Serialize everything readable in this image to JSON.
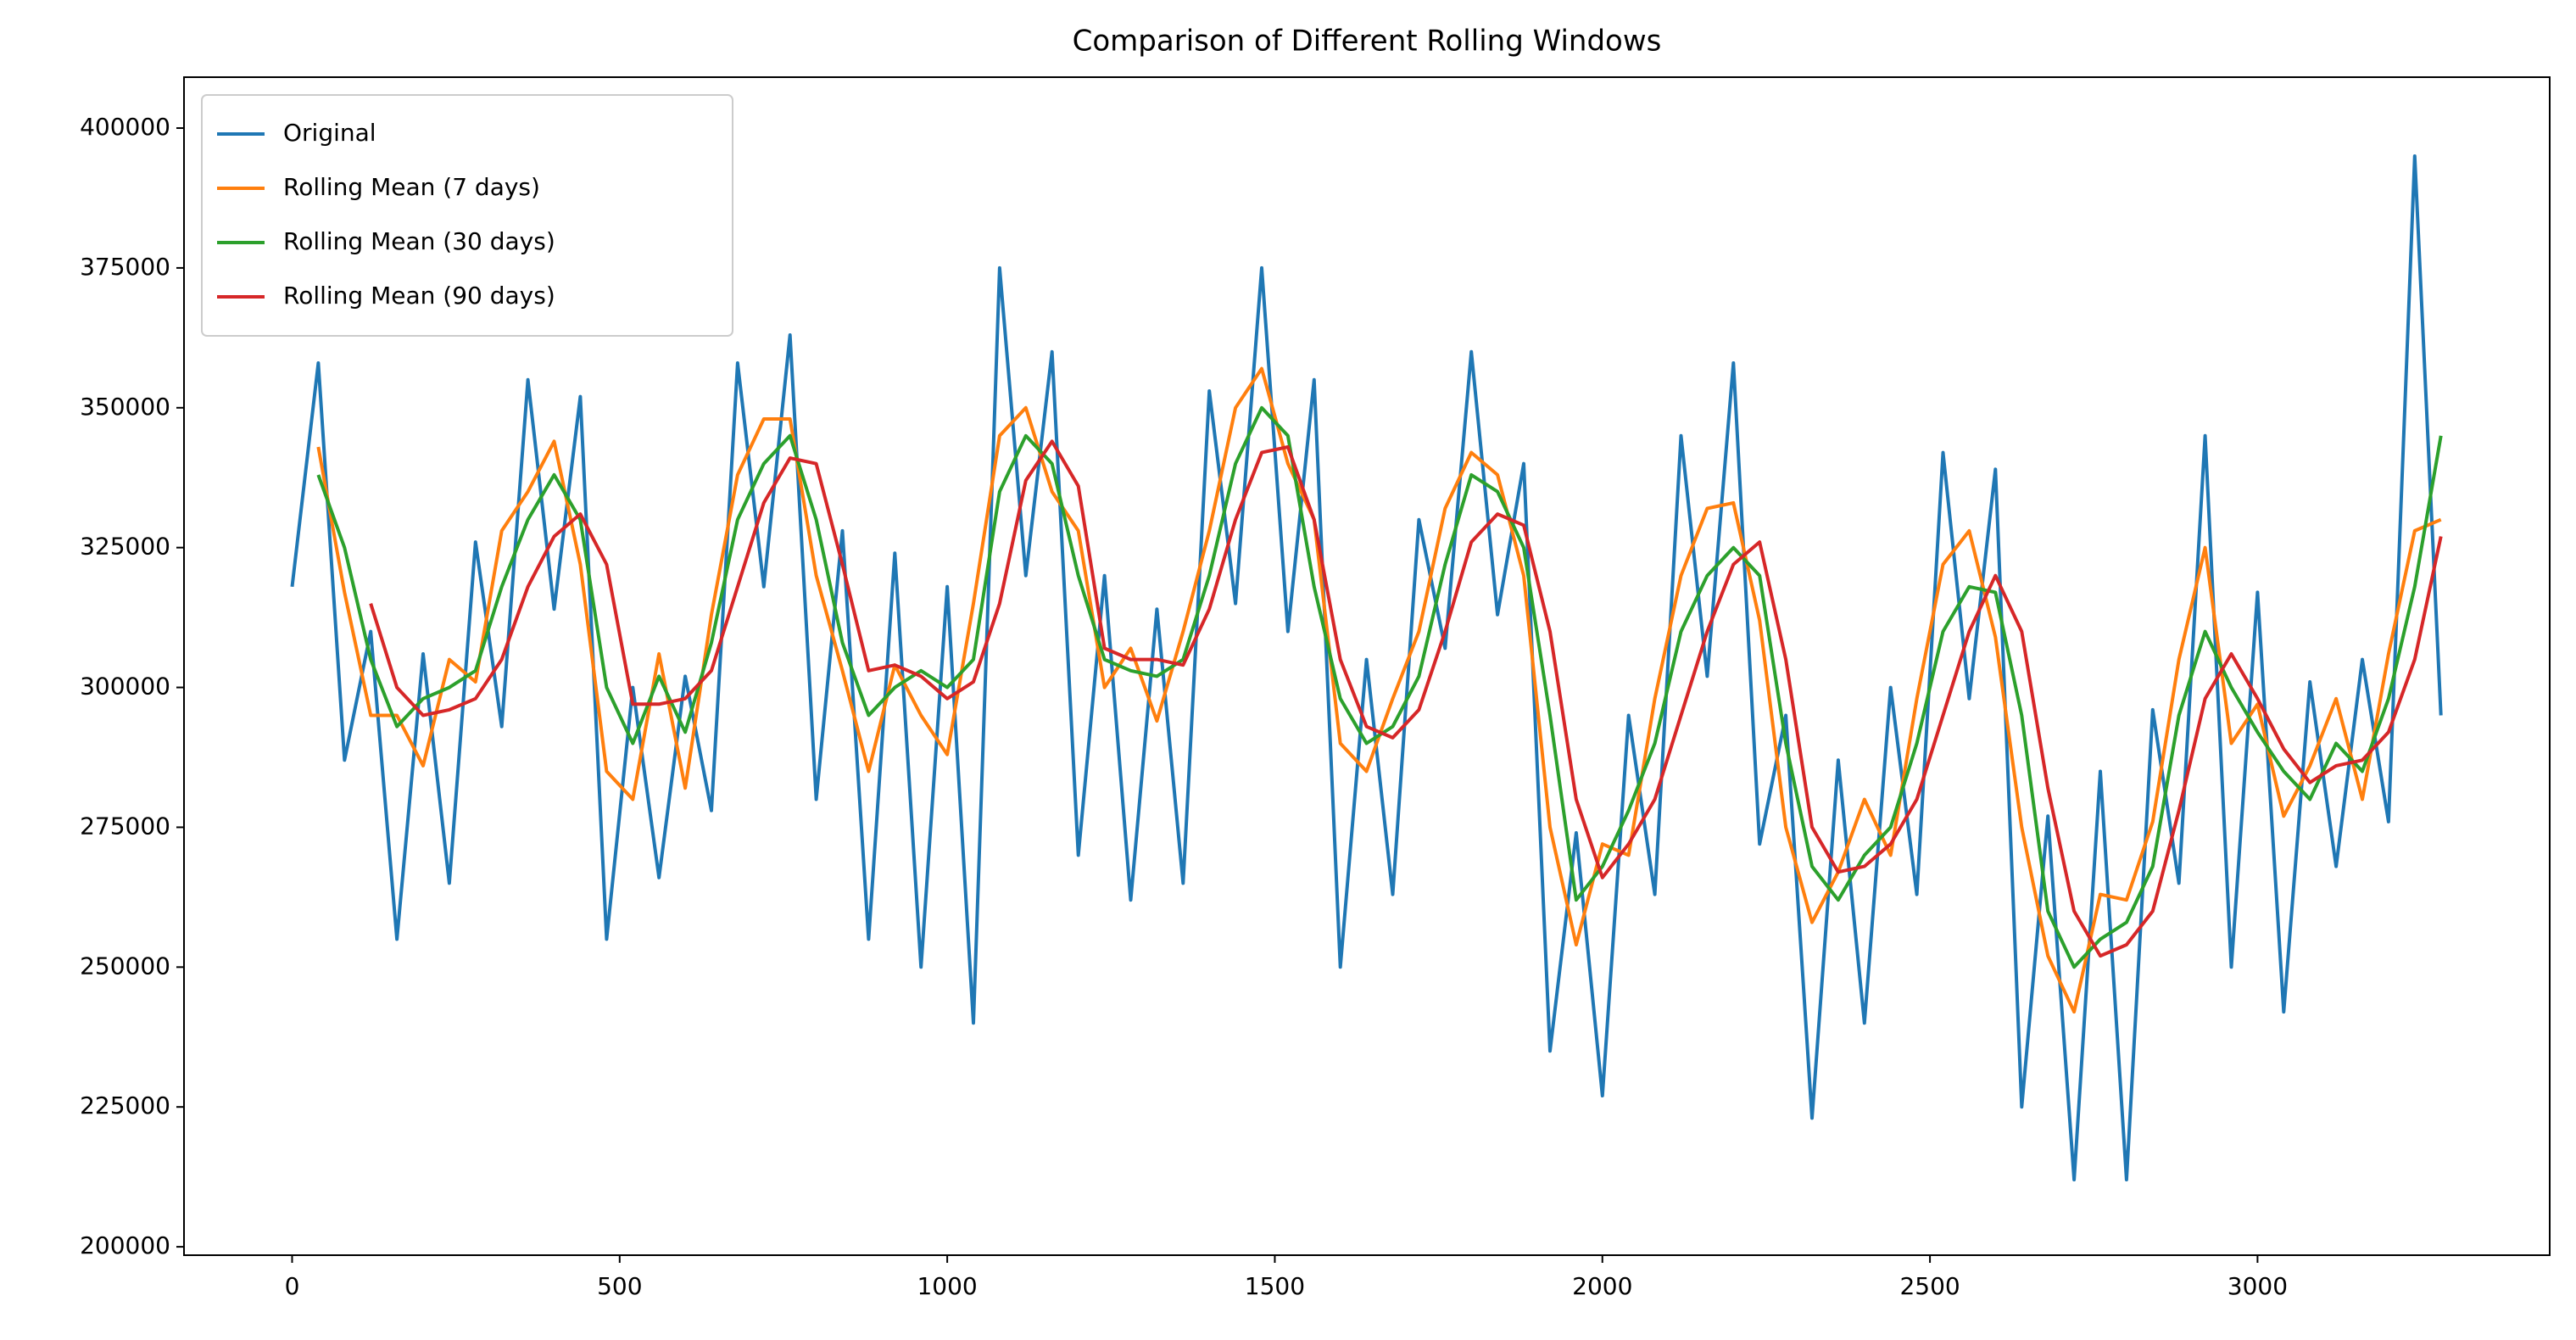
{
  "chart_data": {
    "type": "line",
    "title": "Comparison of Different Rolling Windows",
    "x": [
      0,
      40,
      80,
      120,
      160,
      200,
      240,
      280,
      320,
      360,
      400,
      440,
      480,
      520,
      560,
      600,
      640,
      680,
      720,
      760,
      800,
      840,
      880,
      920,
      960,
      1000,
      1040,
      1080,
      1120,
      1160,
      1200,
      1240,
      1280,
      1320,
      1360,
      1400,
      1440,
      1480,
      1520,
      1560,
      1600,
      1640,
      1680,
      1720,
      1760,
      1800,
      1840,
      1880,
      1920,
      1960,
      2000,
      2040,
      2080,
      2120,
      2160,
      2200,
      2240,
      2280,
      2320,
      2360,
      2400,
      2440,
      2480,
      2520,
      2560,
      2600,
      2640,
      2680,
      2720,
      2760,
      2800,
      2840,
      2880,
      2920,
      2960,
      3000,
      3040,
      3080,
      3120,
      3160,
      3200,
      3240,
      3280
    ],
    "series": [
      {
        "name": "Original",
        "color": "#1f77b4",
        "values": [
          318000,
          358000,
          287000,
          310000,
          255000,
          306000,
          265000,
          326000,
          293000,
          355000,
          314000,
          352000,
          255000,
          300000,
          266000,
          302000,
          278000,
          358000,
          318000,
          363000,
          280000,
          328000,
          255000,
          324000,
          250000,
          318000,
          240000,
          375000,
          320000,
          360000,
          270000,
          320000,
          262000,
          314000,
          265000,
          353000,
          315000,
          375000,
          310000,
          355000,
          250000,
          305000,
          263000,
          330000,
          307000,
          360000,
          313000,
          340000,
          235000,
          274000,
          227000,
          295000,
          263000,
          345000,
          302000,
          358000,
          272000,
          295000,
          223000,
          287000,
          240000,
          300000,
          263000,
          342000,
          298000,
          339000,
          225000,
          277000,
          212000,
          285000,
          212000,
          296000,
          265000,
          345000,
          250000,
          317000,
          242000,
          301000,
          268000,
          305000,
          276000,
          395000,
          295000
        ]
      },
      {
        "name": "Rolling Mean (7 days)",
        "color": "#ff7f0e",
        "values": [
          null,
          343000,
          317000,
          295000,
          295000,
          286000,
          305000,
          301000,
          328000,
          335000,
          344000,
          322000,
          285000,
          280000,
          306000,
          282000,
          313000,
          338000,
          348000,
          348000,
          320000,
          303000,
          285000,
          304000,
          295000,
          288000,
          315000,
          345000,
          350000,
          335000,
          328000,
          300000,
          307000,
          294000,
          310000,
          328000,
          350000,
          357000,
          340000,
          330000,
          290000,
          285000,
          298000,
          310000,
          332000,
          342000,
          338000,
          320000,
          275000,
          254000,
          272000,
          270000,
          298000,
          320000,
          332000,
          333000,
          312000,
          275000,
          258000,
          267000,
          280000,
          270000,
          298000,
          322000,
          328000,
          309000,
          275000,
          252000,
          242000,
          263000,
          262000,
          276000,
          305000,
          325000,
          290000,
          297000,
          277000,
          286000,
          298000,
          280000,
          306000,
          328000,
          330000
        ]
      },
      {
        "name": "Rolling Mean (30 days)",
        "color": "#2ca02c",
        "values": [
          null,
          338000,
          325000,
          305000,
          293000,
          298000,
          300000,
          303000,
          318000,
          330000,
          338000,
          330000,
          300000,
          290000,
          302000,
          292000,
          308000,
          330000,
          340000,
          345000,
          330000,
          308000,
          295000,
          300000,
          303000,
          300000,
          305000,
          335000,
          345000,
          340000,
          320000,
          305000,
          303000,
          302000,
          305000,
          320000,
          340000,
          350000,
          345000,
          318000,
          298000,
          290000,
          293000,
          302000,
          322000,
          338000,
          335000,
          325000,
          295000,
          262000,
          268000,
          278000,
          290000,
          310000,
          320000,
          325000,
          320000,
          290000,
          268000,
          262000,
          270000,
          275000,
          290000,
          310000,
          318000,
          317000,
          295000,
          260000,
          250000,
          255000,
          258000,
          268000,
          295000,
          310000,
          300000,
          292000,
          285000,
          280000,
          290000,
          285000,
          298000,
          318000,
          345000
        ]
      },
      {
        "name": "Rolling Mean (90 days)",
        "color": "#d62728",
        "values": [
          null,
          null,
          null,
          315000,
          300000,
          295000,
          296000,
          298000,
          305000,
          318000,
          327000,
          331000,
          322000,
          297000,
          297000,
          298000,
          303000,
          318000,
          333000,
          341000,
          340000,
          322000,
          303000,
          304000,
          302000,
          298000,
          301000,
          315000,
          337000,
          344000,
          336000,
          307000,
          305000,
          305000,
          304000,
          314000,
          330000,
          342000,
          343000,
          330000,
          305000,
          293000,
          291000,
          296000,
          310000,
          326000,
          331000,
          329000,
          310000,
          280000,
          266000,
          272000,
          280000,
          295000,
          310000,
          322000,
          326000,
          305000,
          275000,
          267000,
          268000,
          272000,
          280000,
          295000,
          310000,
          320000,
          310000,
          282000,
          260000,
          252000,
          254000,
          260000,
          278000,
          298000,
          306000,
          298000,
          289000,
          283000,
          286000,
          287000,
          292000,
          305000,
          327000
        ]
      }
    ],
    "xlim": [
      -165,
      3446
    ],
    "ylim": [
      198500,
      409100
    ],
    "xticks": [
      0,
      500,
      1000,
      1500,
      2000,
      2500,
      3000
    ],
    "yticks": [
      200000,
      225000,
      250000,
      275000,
      300000,
      325000,
      350000,
      375000,
      400000
    ],
    "legend": "upper left"
  }
}
